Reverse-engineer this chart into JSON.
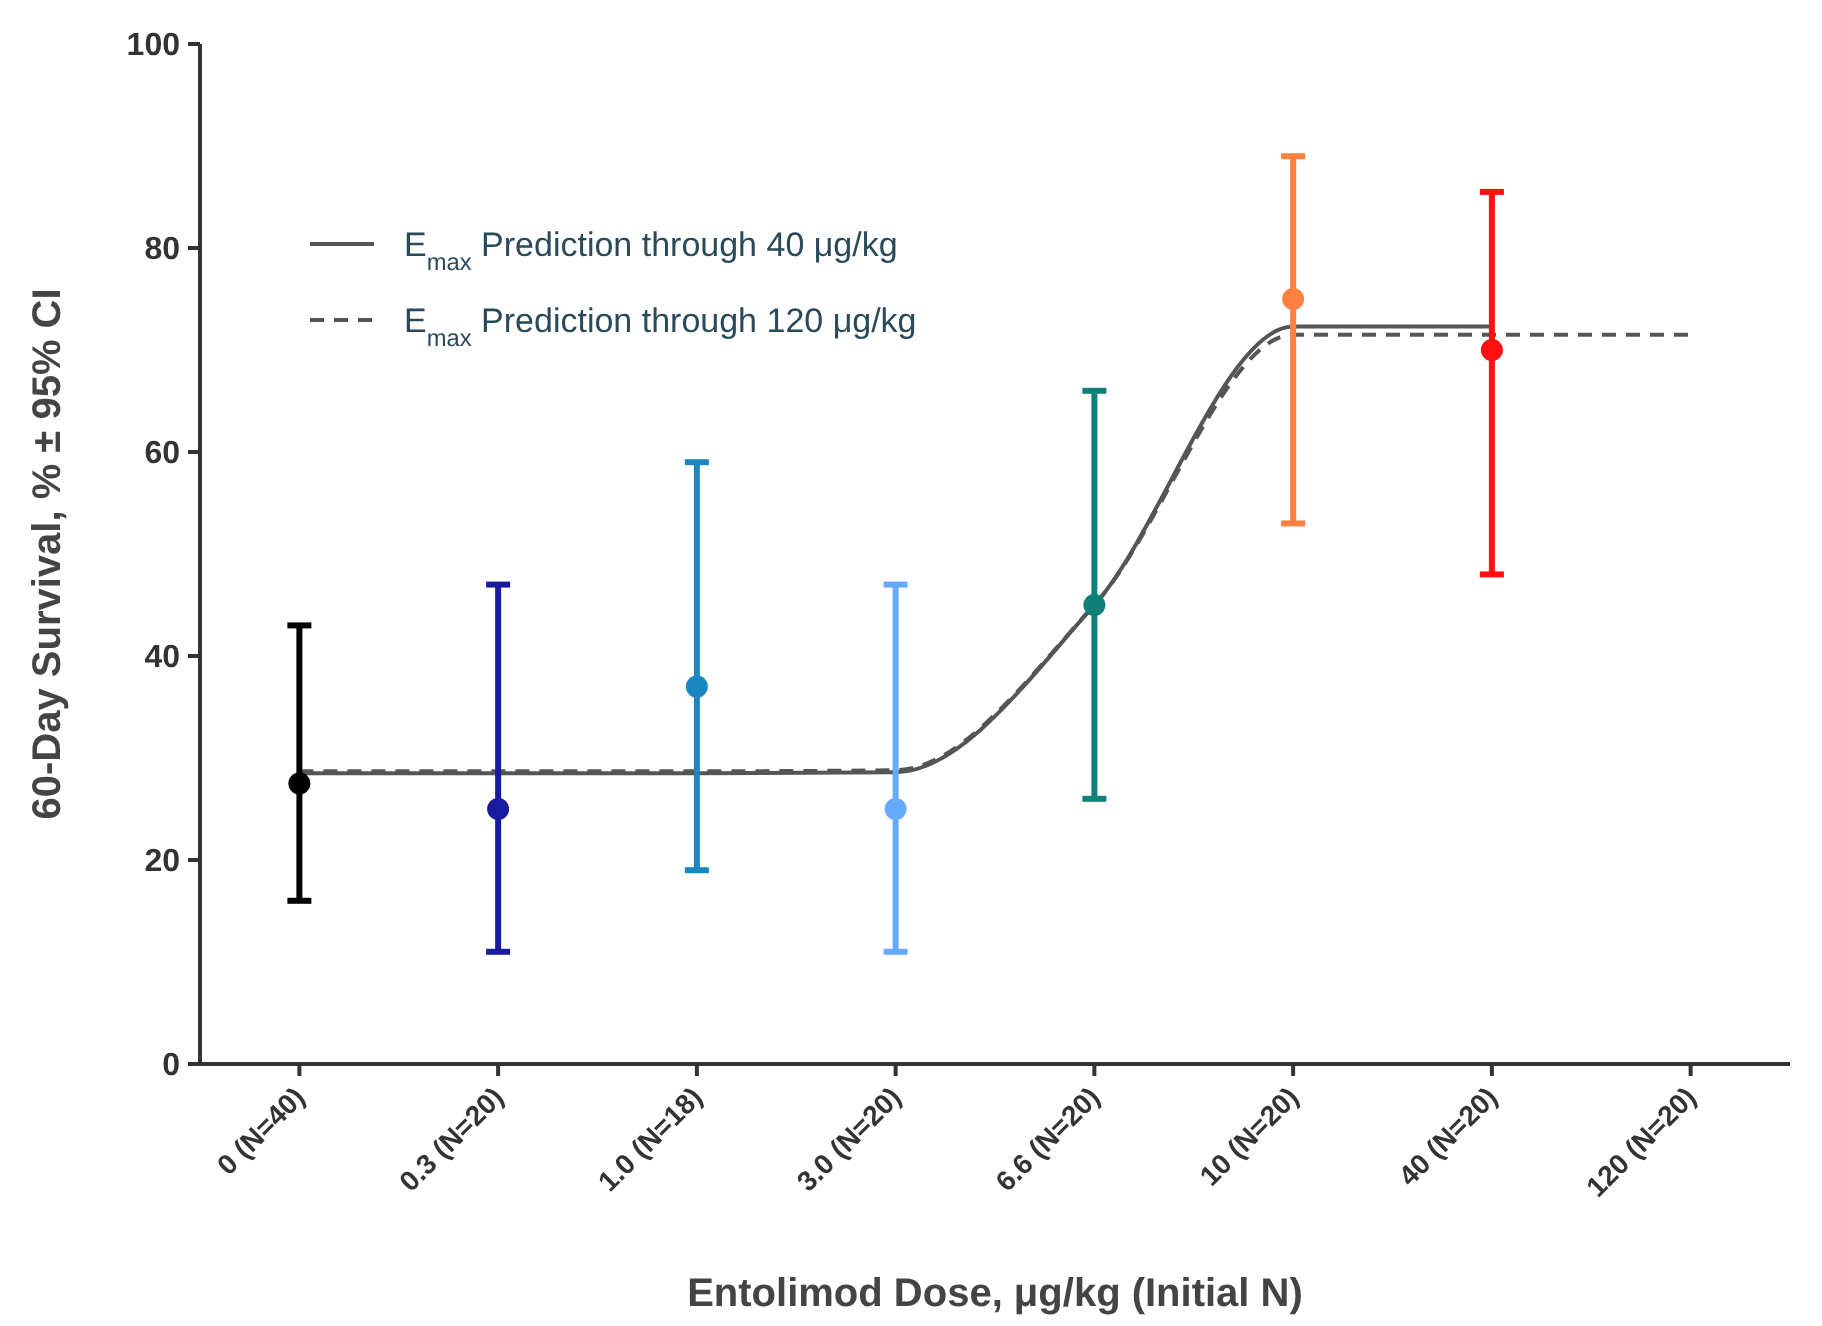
{
  "chart_data": {
    "type": "scatter",
    "xlabel": "Entolimod Dose, μg/kg (Initial N)",
    "ylabel": "60-Day Survival, % ± 95% CI",
    "categories": [
      "0 (N=40)",
      "0.3 (N=20)",
      "1.0 (N=18)",
      "3.0 (N=20)",
      "6.6 (N=20)",
      "10 (N=20)",
      "40 (N=20)",
      "120 (N=20)"
    ],
    "ylim": [
      0,
      100
    ],
    "yticks": [
      0,
      20,
      40,
      60,
      80,
      100
    ],
    "legend": "top left",
    "series": [
      {
        "type": "line",
        "name": "E$_{max}$ Prediction through 40 μg/kg",
        "color": "#555555",
        "line_style": "solid",
        "marker": "none",
        "values": [
          28.5,
          28.5,
          28.5,
          28.6,
          45,
          72.3,
          72.3,
          null
        ]
      },
      {
        "type": "line",
        "name": "E$_{max}$ Prediction through 120 μg/kg",
        "color": "#555555",
        "line_style": "dashed",
        "marker": "none",
        "values": [
          28.7,
          28.7,
          28.7,
          28.8,
          45,
          71.5,
          71.5,
          71.5
        ]
      },
      {
        "marker": "circle",
        "values": [
          27.5,
          25,
          37,
          25,
          45,
          75,
          70,
          null
        ],
        "colors": [
          "#000000",
          "#1a1aa0",
          "#1a87c0",
          "#66aaff",
          "#0f7f7a",
          "#ff8040",
          "#ff1010",
          null
        ],
        "errors": [
          [
            16,
            43
          ],
          [
            11,
            47
          ],
          [
            19,
            59
          ],
          [
            11,
            47
          ],
          [
            26,
            66
          ],
          [
            53,
            89
          ],
          [
            48,
            85.5
          ],
          null
        ]
      }
    ]
  }
}
